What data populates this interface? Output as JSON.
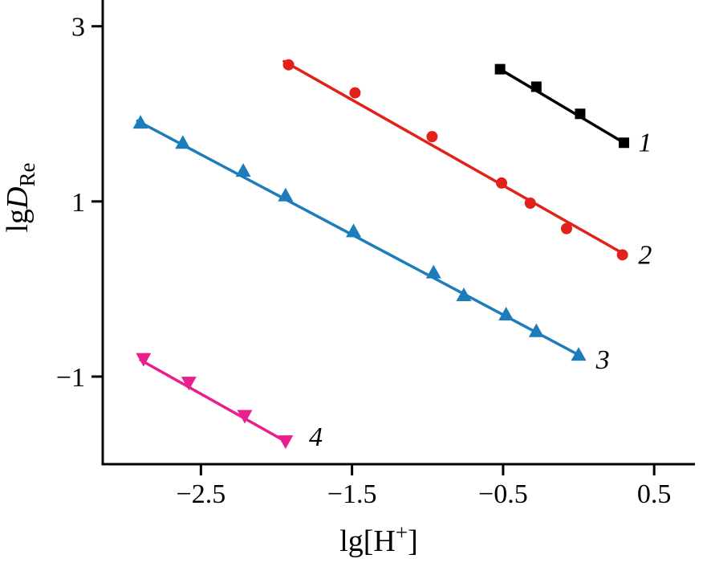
{
  "figure": {
    "background": "#ffffff",
    "axis_color": "#000000"
  },
  "chart_data": {
    "type": "scatter",
    "title": "",
    "xlabel": "lg[H+]",
    "ylabel": "lgD_Re",
    "xlabel_parts": {
      "prefix": "lg[H",
      "sup": "+",
      "suffix": "]"
    },
    "ylabel_parts": {
      "prefix": "lg",
      "italic": "D",
      "sub": "Re"
    },
    "xlim": [
      -3.15,
      0.77
    ],
    "ylim": [
      -2.0,
      3.3
    ],
    "grid": false,
    "legend": "inline-curve-numbers",
    "x_ticks": [
      {
        "value": -2.5,
        "label": "−2.5"
      },
      {
        "value": -1.5,
        "label": "−1.5"
      },
      {
        "value": -0.5,
        "label": "−0.5"
      },
      {
        "value": 0.5,
        "label": "0.5"
      }
    ],
    "y_ticks": [
      {
        "value": 3,
        "label": "3"
      },
      {
        "value": 1,
        "label": "1"
      },
      {
        "value": -1,
        "label": "−1"
      }
    ],
    "series": [
      {
        "name": "curve-1",
        "label": "1",
        "marker": "square",
        "color": "#000000",
        "points": [
          [
            -0.52,
            2.51
          ],
          [
            -0.28,
            2.31
          ],
          [
            0.01,
            2.0
          ],
          [
            0.3,
            1.67
          ]
        ],
        "line": [
          [
            -0.53,
            2.52
          ],
          [
            0.31,
            1.66
          ]
        ],
        "label_pos": [
          0.44,
          1.68
        ]
      },
      {
        "name": "curve-2",
        "label": "2",
        "marker": "circle",
        "color": "#e3211b",
        "points": [
          [
            -1.92,
            2.56
          ],
          [
            -1.48,
            2.24
          ],
          [
            -0.97,
            1.74
          ],
          [
            -0.51,
            1.21
          ],
          [
            -0.32,
            0.98
          ],
          [
            -0.08,
            0.69
          ],
          [
            0.29,
            0.39
          ]
        ],
        "line": [
          [
            -1.95,
            2.6
          ],
          [
            0.3,
            0.4
          ]
        ],
        "label_pos": [
          0.44,
          0.4
        ]
      },
      {
        "name": "curve-3",
        "label": "3",
        "marker": "triangle-up",
        "color": "#1d7dba",
        "points": [
          [
            -2.9,
            1.9
          ],
          [
            -2.62,
            1.67
          ],
          [
            -2.22,
            1.35
          ],
          [
            -1.94,
            1.07
          ],
          [
            -1.49,
            0.66
          ],
          [
            -0.96,
            0.19
          ],
          [
            -0.76,
            -0.07
          ],
          [
            -0.48,
            -0.29
          ],
          [
            -0.28,
            -0.48
          ],
          [
            0.0,
            -0.75
          ]
        ],
        "line": [
          [
            -2.92,
            1.92
          ],
          [
            0.02,
            -0.77
          ]
        ],
        "label_pos": [
          0.16,
          -0.8
        ]
      },
      {
        "name": "curve-4",
        "label": "4",
        "marker": "triangle-down",
        "color": "#ea1e8c",
        "points": [
          [
            -2.88,
            -0.8
          ],
          [
            -2.58,
            -1.07
          ],
          [
            -2.21,
            -1.45
          ],
          [
            -1.94,
            -1.74
          ]
        ],
        "line": [
          [
            -2.9,
            -0.81
          ],
          [
            -1.93,
            -1.75
          ]
        ],
        "label_pos": [
          -1.74,
          -1.68
        ]
      }
    ]
  }
}
